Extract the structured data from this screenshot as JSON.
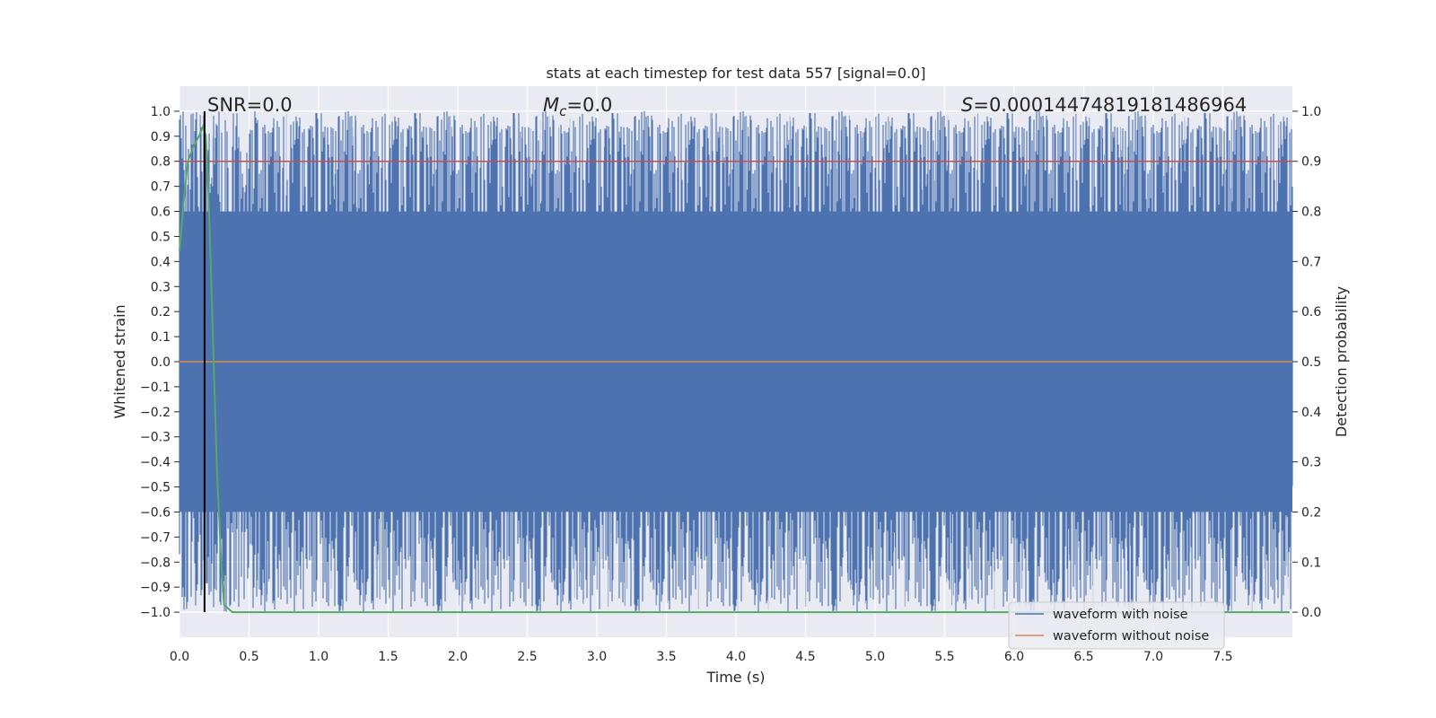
{
  "chart_data": {
    "type": "line",
    "title": "stats at each timestep for test data 557 [signal=0.0]",
    "xlabel": "Time (s)",
    "ylabel_left": "Whitened strain",
    "ylabel_right": "Detection probability",
    "xlim": [
      0.0,
      8.0
    ],
    "ylim_left": [
      -1.1,
      1.1
    ],
    "ylim_right": [
      -0.05,
      1.05
    ],
    "x_ticks": [
      "0.0",
      "0.5",
      "1.0",
      "1.5",
      "2.0",
      "2.5",
      "3.0",
      "3.5",
      "4.0",
      "4.5",
      "5.0",
      "5.5",
      "6.0",
      "6.5",
      "7.0",
      "7.5"
    ],
    "y_ticks_left": [
      "1.0",
      "0.9",
      "0.8",
      "0.7",
      "0.6",
      "0.5",
      "0.4",
      "0.3",
      "0.2",
      "0.1",
      "0.0",
      "−0.1",
      "−0.2",
      "−0.3",
      "−0.4",
      "−0.5",
      "−0.6",
      "−0.7",
      "−0.8",
      "−0.9",
      "−1.0"
    ],
    "y_ticks_right": [
      "1.0",
      "0.9",
      "0.8",
      "0.7",
      "0.6",
      "0.5",
      "0.4",
      "0.3",
      "0.2",
      "0.1",
      "0.0"
    ],
    "grid": true,
    "annotations": {
      "snr_label": "SNR",
      "snr_value": "=0.0",
      "mc_symbol": "M",
      "mc_sub": "c",
      "mc_value": "=0.0",
      "s_symbol": "S",
      "s_value": "=0.00014474819181486964"
    },
    "vertical_marker_time": 0.18,
    "threshold_line": {
      "name": "threshold",
      "axis": "right",
      "value": 0.9,
      "color": "#c44e52"
    },
    "series": [
      {
        "name": "waveform with noise",
        "axis": "left",
        "color": "#4c72b0",
        "description": "dense whitened noise filling approximately -1.0 to 1.0"
      },
      {
        "name": "waveform without noise",
        "axis": "left",
        "color": "#dd8452",
        "values_constant": 0.0
      },
      {
        "name": "detection probability",
        "axis": "right",
        "color": "#55a868",
        "x": [
          0.0,
          0.03,
          0.06,
          0.1,
          0.14,
          0.17,
          0.19,
          0.21,
          0.24,
          0.27,
          0.3,
          0.32,
          0.38,
          1.0,
          2.0,
          3.0,
          4.0,
          5.0,
          6.0,
          7.0,
          7.98
        ],
        "y": [
          0.72,
          0.82,
          0.9,
          0.93,
          0.95,
          0.97,
          0.95,
          0.82,
          0.55,
          0.28,
          0.1,
          0.015,
          0.0,
          0.0,
          0.0,
          0.0,
          0.0,
          0.0,
          0.0,
          0.0,
          0.0
        ]
      }
    ],
    "legend": {
      "position": "lower-right",
      "entries": [
        {
          "label": "waveform with noise",
          "color": "#4c72b0"
        },
        {
          "label": "waveform without noise",
          "color": "#dd8452"
        }
      ]
    },
    "colors": {
      "plot_background": "#eaeaf2",
      "grid": "#ffffff",
      "marker_line": "#000000",
      "text": "#262626"
    }
  }
}
